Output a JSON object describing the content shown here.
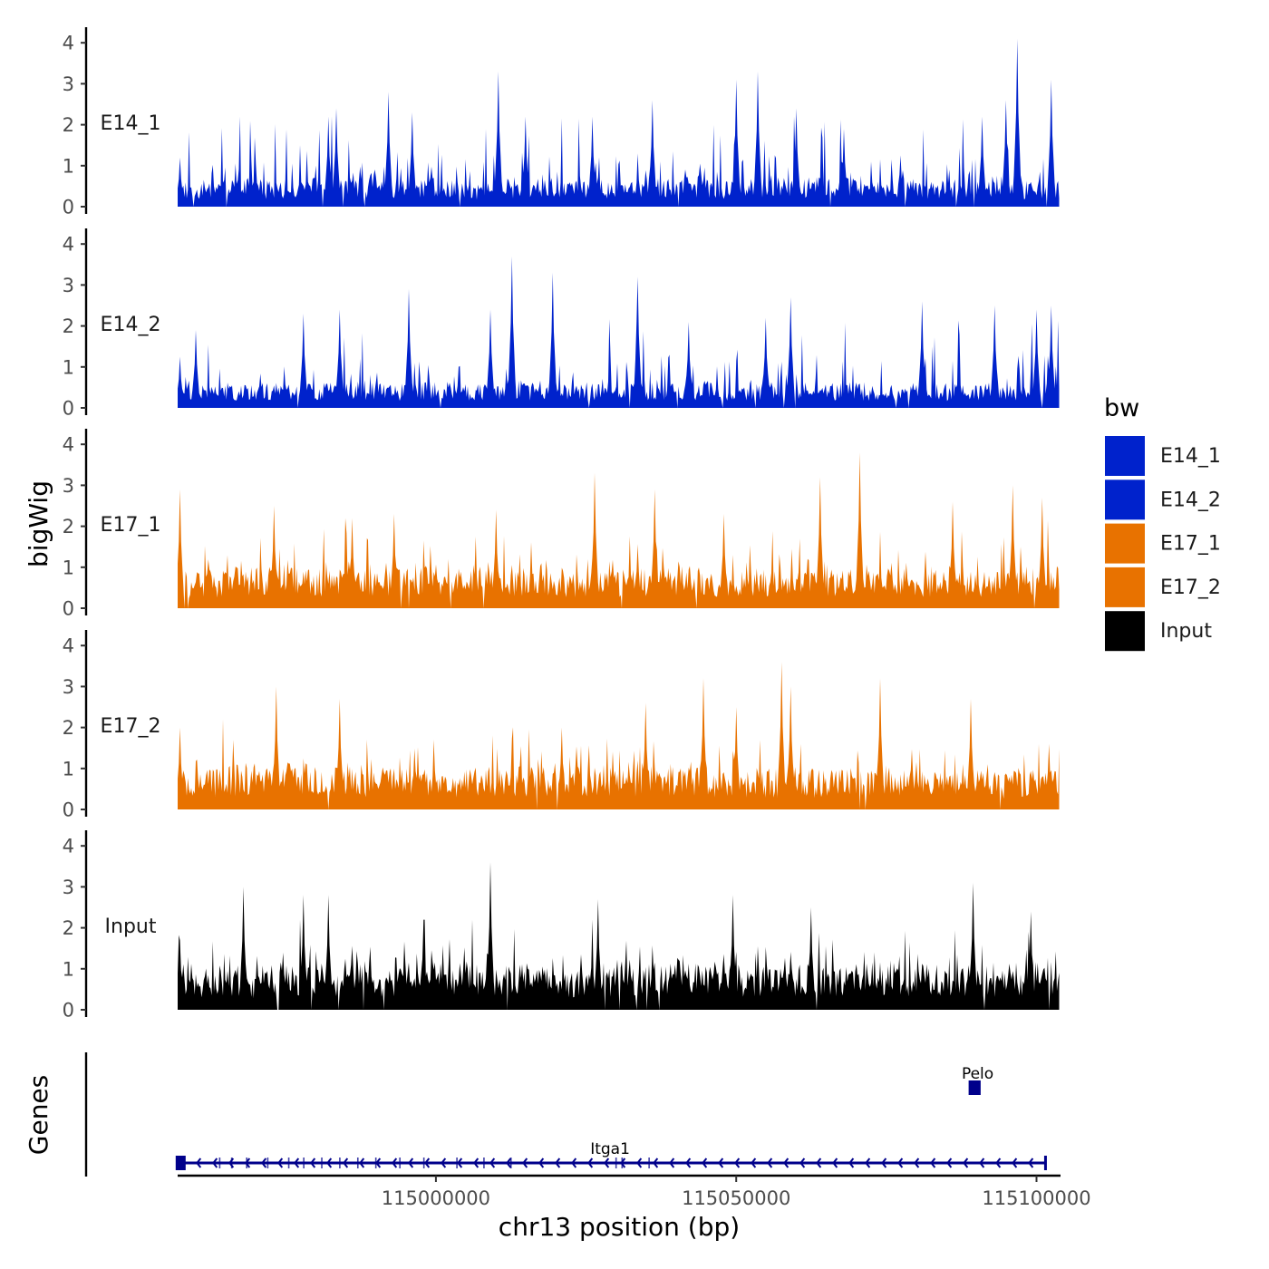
{
  "chart_data": {
    "type": "area",
    "title": "",
    "ylabel": "bigWig",
    "xlabel": "chr13 position (bp)",
    "genes_label": "Genes",
    "xlim": [
      114957000,
      115104000
    ],
    "ylim": [
      0,
      4.2
    ],
    "y_ticks": [
      "0",
      "1",
      "2",
      "3",
      "4"
    ],
    "x_ticks": [
      {
        "value": 115000000,
        "label": "115000000"
      },
      {
        "value": 115050000,
        "label": "115050000"
      },
      {
        "value": 115100000,
        "label": "115100000"
      }
    ],
    "signal_range": [
      114957000,
      115103800
    ],
    "legend": {
      "title": "bw",
      "entries": [
        {
          "name": "E14_1",
          "color": "#0022CC"
        },
        {
          "name": "E14_2",
          "color": "#0022CC"
        },
        {
          "name": "E17_1",
          "color": "#E87200"
        },
        {
          "name": "E17_2",
          "color": "#E87200"
        },
        {
          "name": "Input",
          "color": "#000000"
        }
      ]
    },
    "series": [
      {
        "name": "E14_1",
        "label": "E14_1",
        "color": "#0022CC",
        "peaks": [
          {
            "x": 114957300,
            "y": 1.2
          },
          {
            "x": 114982000,
            "y": 2.2
          },
          {
            "x": 114983500,
            "y": 2.4
          },
          {
            "x": 114992000,
            "y": 2.8
          },
          {
            "x": 114996000,
            "y": 2.3
          },
          {
            "x": 115010300,
            "y": 3.3
          },
          {
            "x": 115015000,
            "y": 2.2
          },
          {
            "x": 115026000,
            "y": 2.2
          },
          {
            "x": 115036000,
            "y": 2.6
          },
          {
            "x": 115050000,
            "y": 3.1
          },
          {
            "x": 115053500,
            "y": 3.3
          },
          {
            "x": 115060000,
            "y": 2.4
          },
          {
            "x": 115068000,
            "y": 1.9
          },
          {
            "x": 115091000,
            "y": 2.2
          },
          {
            "x": 115095000,
            "y": 2.6
          },
          {
            "x": 115096800,
            "y": 4.1
          },
          {
            "x": 115102500,
            "y": 3.1
          }
        ],
        "seed": 11,
        "base": 0.55,
        "spikiness": 1.35
      },
      {
        "name": "E14_2",
        "label": "E14_2",
        "color": "#0022CC",
        "peaks": [
          {
            "x": 114957300,
            "y": 1.25
          },
          {
            "x": 114960000,
            "y": 1.9
          },
          {
            "x": 114978000,
            "y": 2.3
          },
          {
            "x": 114984000,
            "y": 2.4
          },
          {
            "x": 114995500,
            "y": 2.9
          },
          {
            "x": 115009000,
            "y": 2.4
          },
          {
            "x": 115012600,
            "y": 3.7
          },
          {
            "x": 115019500,
            "y": 3.3
          },
          {
            "x": 115033500,
            "y": 3.2
          },
          {
            "x": 115042000,
            "y": 2.1
          },
          {
            "x": 115055000,
            "y": 2.2
          },
          {
            "x": 115059000,
            "y": 2.7
          },
          {
            "x": 115081000,
            "y": 2.6
          },
          {
            "x": 115093000,
            "y": 2.5
          },
          {
            "x": 115100000,
            "y": 2.4
          },
          {
            "x": 115102500,
            "y": 2.5
          }
        ],
        "seed": 23,
        "base": 0.5,
        "spikiness": 1.3
      },
      {
        "name": "E17_1",
        "label": "E17_1",
        "color": "#E87200",
        "peaks": [
          {
            "x": 114957300,
            "y": 2.9
          },
          {
            "x": 114973000,
            "y": 2.5
          },
          {
            "x": 114986000,
            "y": 2.2
          },
          {
            "x": 114993000,
            "y": 2.3
          },
          {
            "x": 115010000,
            "y": 2.4
          },
          {
            "x": 115026400,
            "y": 3.3
          },
          {
            "x": 115036500,
            "y": 2.9
          },
          {
            "x": 115048000,
            "y": 2.3
          },
          {
            "x": 115064000,
            "y": 3.2
          },
          {
            "x": 115070500,
            "y": 3.8
          },
          {
            "x": 115086000,
            "y": 2.6
          },
          {
            "x": 115096000,
            "y": 3.0
          },
          {
            "x": 115101000,
            "y": 2.7
          }
        ],
        "seed": 37,
        "base": 0.8,
        "spikiness": 1.1
      },
      {
        "name": "E17_2",
        "label": "E17_2",
        "color": "#E87200",
        "peaks": [
          {
            "x": 114957300,
            "y": 2.0
          },
          {
            "x": 114973500,
            "y": 3.0
          },
          {
            "x": 114984000,
            "y": 2.7
          },
          {
            "x": 115021000,
            "y": 2.0
          },
          {
            "x": 115035000,
            "y": 2.6
          },
          {
            "x": 115044500,
            "y": 3.2
          },
          {
            "x": 115050000,
            "y": 2.5
          },
          {
            "x": 115057500,
            "y": 3.6
          },
          {
            "x": 115059000,
            "y": 3.0
          },
          {
            "x": 115074000,
            "y": 3.2
          },
          {
            "x": 115089000,
            "y": 2.7
          },
          {
            "x": 115102000,
            "y": 1.6
          }
        ],
        "seed": 53,
        "base": 0.85,
        "spikiness": 1.1
      },
      {
        "name": "Input",
        "label": "Input",
        "color": "#000000",
        "peaks": [
          {
            "x": 114957300,
            "y": 1.7
          },
          {
            "x": 114968000,
            "y": 3.0
          },
          {
            "x": 114978000,
            "y": 2.8
          },
          {
            "x": 114982000,
            "y": 2.8
          },
          {
            "x": 114998000,
            "y": 2.2
          },
          {
            "x": 115009000,
            "y": 3.6
          },
          {
            "x": 115027000,
            "y": 2.7
          },
          {
            "x": 115049500,
            "y": 2.8
          },
          {
            "x": 115062500,
            "y": 2.5
          },
          {
            "x": 115089400,
            "y": 3.1
          },
          {
            "x": 115099000,
            "y": 2.4
          }
        ],
        "seed": 71,
        "base": 0.9,
        "spikiness": 1.05
      }
    ],
    "genes": [
      {
        "name": "Itga1",
        "start": 114957500,
        "end": 115101500,
        "strand": "-",
        "row": 0,
        "exons": [
          114957500,
          114964000,
          114966000,
          114968500,
          114972000,
          114975500,
          114978000,
          114981000,
          114984000,
          114987000,
          114990000,
          114994000,
          114998000,
          115003500,
          115008000,
          115012500,
          115030000,
          115031000,
          115035500
        ]
      },
      {
        "name": "Pelo",
        "start": 115089000,
        "end": 115090400,
        "strand": "-",
        "row": 1,
        "exons": [
          115089000,
          115089500,
          115090000
        ]
      }
    ]
  }
}
